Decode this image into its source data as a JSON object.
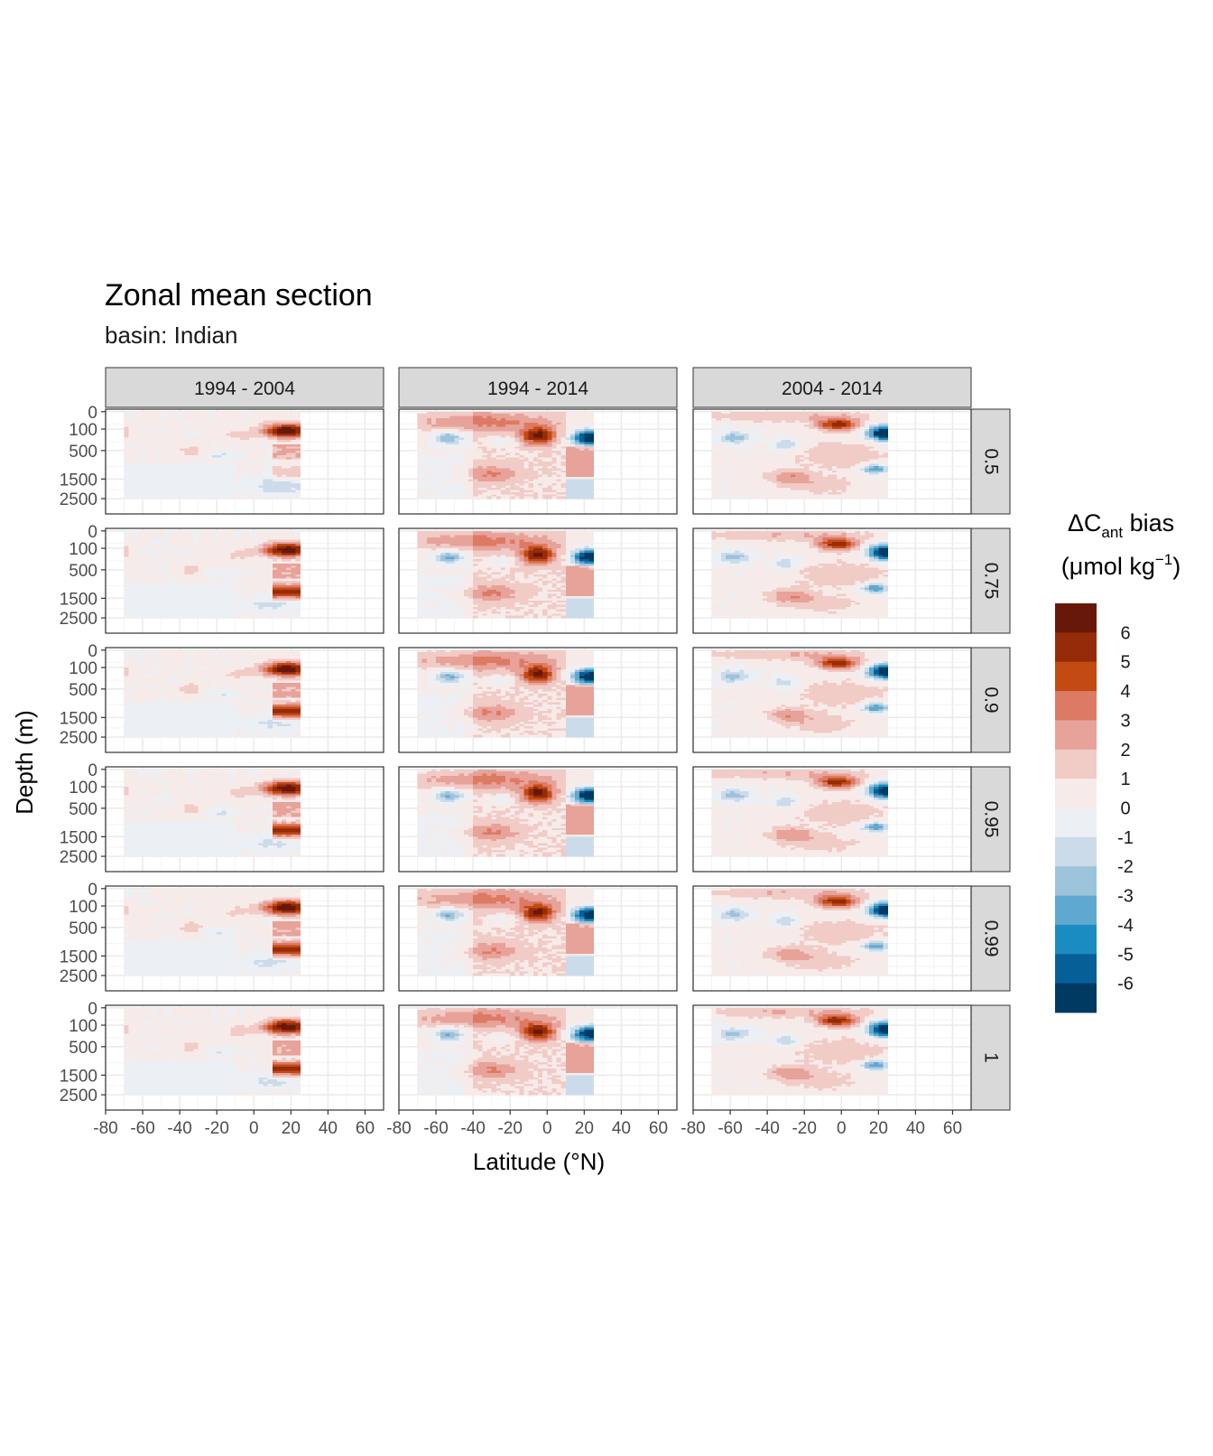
{
  "title": "Zonal mean section",
  "subtitle": "basin: Indian",
  "chart_data": {
    "type": "heatmap",
    "title": "Zonal mean section",
    "subtitle": "basin: Indian",
    "xlabel": "Latitude (°N)",
    "ylabel": "Depth (m)",
    "xlim": [
      -80,
      70
    ],
    "x_ticks": [
      -80,
      -60,
      -40,
      -20,
      0,
      20,
      40,
      60
    ],
    "x_tick_labels": [
      "-80",
      "-60",
      "-40",
      "-20",
      "0",
      "20",
      "40",
      "60"
    ],
    "y_ticks": [
      0,
      100,
      500,
      1500,
      2500
    ],
    "y_tick_labels": [
      "0",
      "100",
      "500",
      "1500",
      "2500"
    ],
    "y_scale": "sqrt-like, reversed",
    "grid": true,
    "facet_columns": [
      "1994 - 2004",
      "1994 - 2014",
      "2004 - 2014"
    ],
    "facet_rows": [
      "0.5",
      "0.75",
      "0.9",
      "0.95",
      "0.99",
      "1"
    ],
    "legend": {
      "title_main": "ΔC",
      "title_sub": "ant",
      "title_rest": " bias",
      "unit_open": "(μmol kg",
      "unit_sup": "−1",
      "unit_close": ")",
      "position": "right",
      "labels": [
        "6",
        "5",
        "4",
        "3",
        "2",
        "1",
        "0",
        "-1",
        "-2",
        "-3",
        "-4",
        "-5",
        "-6"
      ],
      "colors": [
        "#67180a",
        "#962b0a",
        "#c34a12",
        "#dd7a63",
        "#e7a29a",
        "#f1cbc6",
        "#f7ebea",
        "#ecf0f4",
        "#ccdbea",
        "#9cc3dc",
        "#5fa8cf",
        "#1a8cc1",
        "#075f98",
        "#003961"
      ]
    },
    "data_coverage_lat": [
      -70,
      25
    ]
  }
}
